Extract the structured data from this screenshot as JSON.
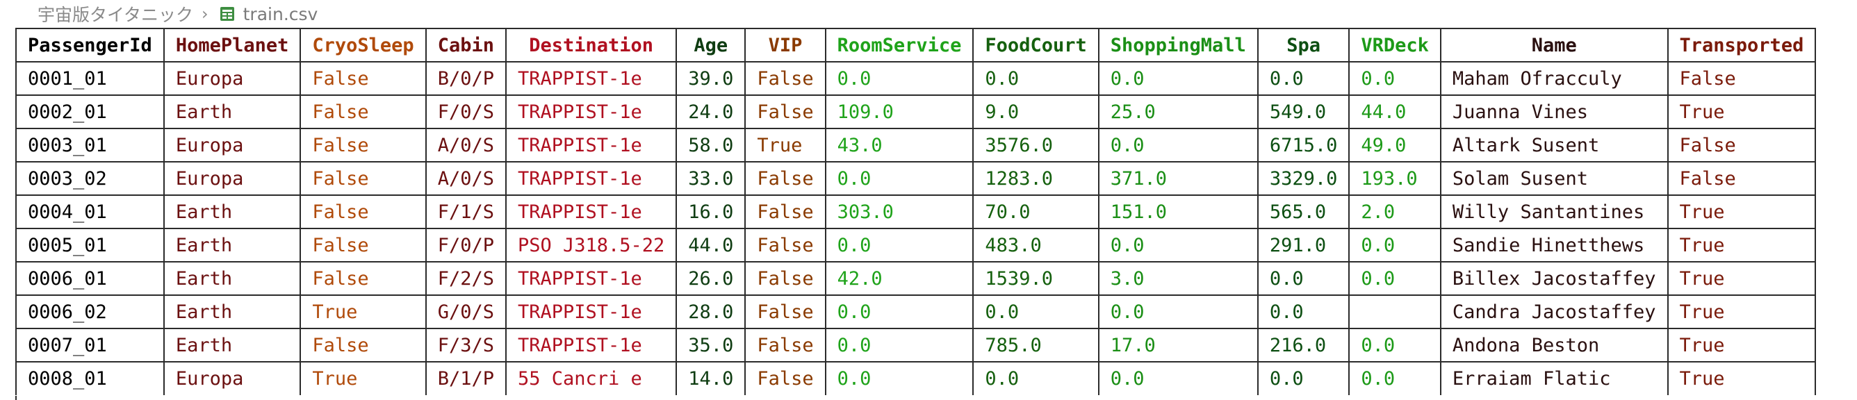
{
  "breadcrumb": {
    "folder": "宇宙版タイタニック",
    "separator": "›",
    "file": "train.csv",
    "file_icon": "table-icon"
  },
  "colors": {
    "PassengerId": "#000000",
    "HomePlanet": "#6b1010",
    "CryoSleep": "#b04a0a",
    "Cabin": "#6b1010",
    "Destination": "#b01020",
    "Age": "#0f3d12",
    "VIP": "#8a3a00",
    "RoomService": "#1fa31a",
    "FoodCourt": "#15600e",
    "ShoppingMall": "#1b8f16",
    "Spa": "#0d4f12",
    "VRDeck": "#1d9a18",
    "Name": "#2a1010",
    "Transported": "#7a1a0a"
  },
  "table": {
    "headers": [
      "PassengerId",
      "HomePlanet",
      "CryoSleep",
      "Cabin",
      "Destination",
      "Age",
      "VIP",
      "RoomService",
      "FoodCourt",
      "ShoppingMall",
      "Spa",
      "VRDeck",
      "Name",
      "Transported"
    ],
    "rows": [
      [
        "0001_01",
        "Europa",
        "False",
        "B/0/P",
        "TRAPPIST-1e",
        "39.0",
        "False",
        "0.0",
        "0.0",
        "0.0",
        "0.0",
        "0.0",
        "Maham Ofracculy",
        "False"
      ],
      [
        "0002_01",
        "Earth",
        "False",
        "F/0/S",
        "TRAPPIST-1e",
        "24.0",
        "False",
        "109.0",
        "9.0",
        "25.0",
        "549.0",
        "44.0",
        "Juanna Vines",
        "True"
      ],
      [
        "0003_01",
        "Europa",
        "False",
        "A/0/S",
        "TRAPPIST-1e",
        "58.0",
        "True",
        "43.0",
        "3576.0",
        "0.0",
        "6715.0",
        "49.0",
        "Altark Susent",
        "False"
      ],
      [
        "0003_02",
        "Europa",
        "False",
        "A/0/S",
        "TRAPPIST-1e",
        "33.0",
        "False",
        "0.0",
        "1283.0",
        "371.0",
        "3329.0",
        "193.0",
        "Solam Susent",
        "False"
      ],
      [
        "0004_01",
        "Earth",
        "False",
        "F/1/S",
        "TRAPPIST-1e",
        "16.0",
        "False",
        "303.0",
        "70.0",
        "151.0",
        "565.0",
        "2.0",
        "Willy Santantines",
        "True"
      ],
      [
        "0005_01",
        "Earth",
        "False",
        "F/0/P",
        "PSO J318.5-22",
        "44.0",
        "False",
        "0.0",
        "483.0",
        "0.0",
        "291.0",
        "0.0",
        "Sandie Hinetthews",
        "True"
      ],
      [
        "0006_01",
        "Earth",
        "False",
        "F/2/S",
        "TRAPPIST-1e",
        "26.0",
        "False",
        "42.0",
        "1539.0",
        "3.0",
        "0.0",
        "0.0",
        "Billex Jacostaffey",
        "True"
      ],
      [
        "0006_02",
        "Earth",
        "True",
        "G/0/S",
        "TRAPPIST-1e",
        "28.0",
        "False",
        "0.0",
        "0.0",
        "0.0",
        "0.0",
        "",
        "Candra Jacostaffey",
        "True"
      ],
      [
        "0007_01",
        "Earth",
        "False",
        "F/3/S",
        "TRAPPIST-1e",
        "35.0",
        "False",
        "0.0",
        "785.0",
        "17.0",
        "216.0",
        "0.0",
        "Andona Beston",
        "True"
      ],
      [
        "0008_01",
        "Europa",
        "True",
        "B/1/P",
        "55 Cancri e",
        "14.0",
        "False",
        "0.0",
        "0.0",
        "0.0",
        "0.0",
        "0.0",
        "Erraiam Flatic",
        "True"
      ]
    ]
  }
}
